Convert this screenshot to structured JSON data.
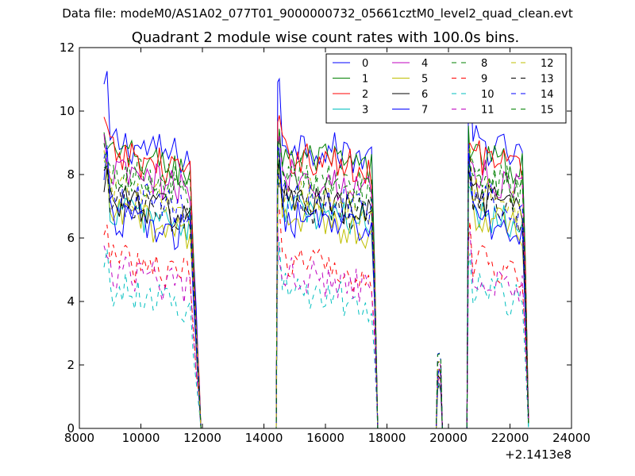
{
  "figure": {
    "suptitle": "Data file: modeM0/AS1A02_077T01_9000000732_05661cztM0_level2_quad_clean.evt"
  },
  "chart_data": {
    "type": "line",
    "title": "Quadrant 2 module wise count rates with 100.0s bins.",
    "xlabel": "",
    "ylabel": "",
    "x_offset_label": "+2.1413e8",
    "xlim": [
      8000,
      24000
    ],
    "ylim": [
      0,
      12
    ],
    "xticks": [
      8000,
      10000,
      12000,
      14000,
      16000,
      18000,
      20000,
      22000,
      24000
    ],
    "yticks": [
      0,
      2,
      4,
      6,
      8,
      10,
      12
    ],
    "grid": false,
    "legend_position": "top-right",
    "legend_columns": 4,
    "x_start": 8800,
    "x_step": 100,
    "segments": [
      {
        "start": 8800,
        "end": 11600,
        "decay_end": 11950
      },
      {
        "start": 14450,
        "end": 17550,
        "decay_end": 17700
      },
      {
        "start": 19650,
        "end": 19750,
        "decay_end": 19800
      },
      {
        "start": 20650,
        "end": 22450,
        "decay_end": 22600
      }
    ],
    "series": [
      {
        "name": "0",
        "color": "#0000ff",
        "dash": "solid",
        "level": 9.1,
        "peak": 10.7
      },
      {
        "name": "1",
        "color": "#008000",
        "dash": "solid",
        "level": 8.7,
        "peak": 9.1
      },
      {
        "name": "2",
        "color": "#ff0000",
        "dash": "solid",
        "level": 8.7,
        "peak": 9.5
      },
      {
        "name": "3",
        "color": "#00bfbf",
        "dash": "solid",
        "level": 7.0,
        "peak": 8.0
      },
      {
        "name": "4",
        "color": "#bf00bf",
        "dash": "solid",
        "level": 8.1,
        "peak": 8.8
      },
      {
        "name": "5",
        "color": "#bfbf00",
        "dash": "solid",
        "level": 6.8,
        "peak": 8.2
      },
      {
        "name": "6",
        "color": "#000000",
        "dash": "solid",
        "level": 7.3,
        "peak": 8.0
      },
      {
        "name": "7",
        "color": "#0000ff",
        "dash": "solid",
        "level": 6.7,
        "peak": 8.3
      },
      {
        "name": "8",
        "color": "#008000",
        "dash": "dashed",
        "level": 7.9,
        "peak": 8.6
      },
      {
        "name": "9",
        "color": "#ff0000",
        "dash": "dashed",
        "level": 5.4,
        "peak": 6.4
      },
      {
        "name": "10",
        "color": "#00bfbf",
        "dash": "dashed",
        "level": 4.5,
        "peak": 5.3
      },
      {
        "name": "11",
        "color": "#bf00bf",
        "dash": "dashed",
        "level": 5.0,
        "peak": 5.9
      },
      {
        "name": "12",
        "color": "#bfbf00",
        "dash": "dashed",
        "level": 7.5,
        "peak": 8.5
      },
      {
        "name": "13",
        "color": "#000000",
        "dash": "dashed",
        "level": 7.2,
        "peak": 8.1
      },
      {
        "name": "14",
        "color": "#0000ff",
        "dash": "dashed",
        "level": 7.4,
        "peak": 8.4
      },
      {
        "name": "15",
        "color": "#008000",
        "dash": "dashed",
        "level": 8.2,
        "peak": 8.8
      }
    ]
  }
}
